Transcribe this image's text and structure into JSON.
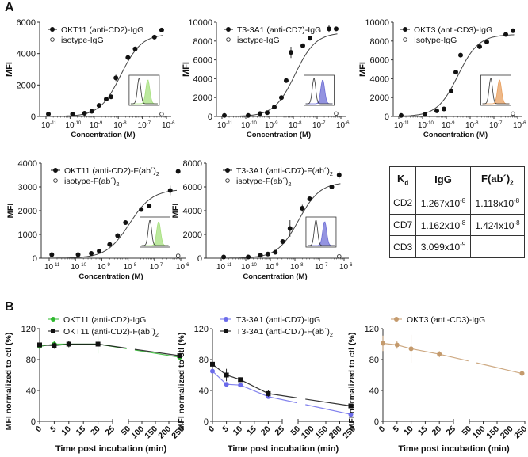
{
  "panel_labels": {
    "a": "A",
    "b": "B"
  },
  "kd_table": {
    "header": {
      "kd": "K",
      "kd_sub": "d",
      "igg": "IgG",
      "fab": "F(ab´)",
      "fab_sub": "2"
    },
    "rows": [
      {
        "target": "CD2",
        "igg": {
          "mant": "1.267x10",
          "exp": "-8"
        },
        "fab": {
          "mant": "1.118x10",
          "exp": "-8"
        }
      },
      {
        "target": "CD7",
        "igg": {
          "mant": "1.162x10",
          "exp": "-8"
        },
        "fab": {
          "mant": "1.424x10",
          "exp": "-8"
        }
      },
      {
        "target": "CD3",
        "igg": {
          "mant": "3.099x10",
          "exp": "-9"
        },
        "fab": {
          "mant": "",
          "exp": ""
        }
      }
    ]
  },
  "chart_data": [
    {
      "type": "scatter",
      "panel": "A",
      "xscale": "log",
      "xlim_log10": [
        -11,
        -6
      ],
      "xticks_exp": [
        "-11",
        "-10",
        "-9",
        "-8",
        "-7",
        "-6"
      ],
      "ylim": [
        0,
        6000
      ],
      "yticks": [
        0,
        2000,
        4000,
        6000
      ],
      "ylabel": "MFI",
      "xlabel": "Concentration (M)",
      "legend": "top-left",
      "inset_color": "#a6e07e",
      "series": [
        {
          "name": "OKT11 (anti-CD2)-IgG",
          "marker": "filled",
          "fit": {
            "bottom": 0,
            "top": 5250,
            "log_ec50": -7.9,
            "hill": 1
          },
          "log10_x": [
            -10.9,
            -9.9,
            -9.4,
            -9.1,
            -8.8,
            -8.5,
            -8.3,
            -8.1,
            -7.6,
            -7.3,
            -6.5,
            -6.2
          ],
          "y": [
            150,
            150,
            200,
            330,
            700,
            1100,
            1250,
            2450,
            3750,
            4300,
            5050,
            5500
          ],
          "err": [
            0,
            0,
            0,
            0,
            0,
            0,
            0,
            200,
            0,
            0,
            120,
            0
          ]
        },
        {
          "name": "isotype-IgG",
          "marker": "open",
          "log10_x": [
            -6.2
          ],
          "y": [
            150
          ]
        }
      ]
    },
    {
      "type": "scatter",
      "panel": "A",
      "xscale": "log",
      "xlim_log10": [
        -11,
        -6
      ],
      "xticks_exp": [
        "-11",
        "-10",
        "-9",
        "-8",
        "-7",
        "-6"
      ],
      "ylim": [
        0,
        10000
      ],
      "yticks": [
        0,
        2000,
        4000,
        6000,
        8000,
        10000
      ],
      "ylabel": "MFI",
      "xlabel": "Concentration (M)",
      "legend": "top-left",
      "inset_color": "#6f6fd6",
      "series": [
        {
          "name": "T3-3A1 (anti-CD7)-IgG",
          "marker": "filled",
          "fit": {
            "bottom": 0,
            "top": 8900,
            "log_ec50": -7.93,
            "hill": 1
          },
          "log10_x": [
            -10.9,
            -9.9,
            -9.4,
            -9.1,
            -8.8,
            -8.5,
            -8.3,
            -8.1,
            -7.6,
            -7.3,
            -6.5,
            -6.2
          ],
          "y": [
            100,
            100,
            300,
            400,
            1000,
            2000,
            3800,
            6800,
            7500,
            8300,
            9300,
            9300
          ],
          "err": [
            0,
            0,
            0,
            0,
            0,
            0,
            200,
            600,
            0,
            0,
            400,
            0
          ]
        },
        {
          "name": "isotype-IgG",
          "marker": "open",
          "log10_x": [
            -6.2
          ],
          "y": [
            300
          ]
        }
      ]
    },
    {
      "type": "scatter",
      "panel": "A",
      "xscale": "log",
      "xlim_log10": [
        -11,
        -6
      ],
      "xticks_exp": [
        "-11",
        "-10",
        "-9",
        "-8",
        "-7",
        "-6"
      ],
      "ylim": [
        0,
        10000
      ],
      "yticks": [
        0,
        2000,
        4000,
        6000,
        8000,
        10000
      ],
      "ylabel": "MFI",
      "xlabel": "Concentration (M)",
      "legend": "top-left",
      "inset_color": "#e8a060",
      "series": [
        {
          "name": "OKT3 (anti-CD3)-IgG",
          "marker": "filled",
          "fit": {
            "bottom": 0,
            "top": 8700,
            "log_ec50": -8.51,
            "hill": 1
          },
          "log10_x": [
            -10.9,
            -9.9,
            -9.4,
            -9.1,
            -8.8,
            -8.6,
            -8.4,
            -7.6,
            -7.3,
            -6.5,
            -6.2
          ],
          "y": [
            100,
            200,
            600,
            800,
            2700,
            4700,
            6500,
            7400,
            7900,
            8700,
            9100
          ]
        },
        {
          "name": "Isotype-IgG",
          "marker": "open",
          "log10_x": [
            -6.2
          ],
          "y": [
            300
          ]
        }
      ]
    },
    {
      "type": "scatter",
      "panel": "A",
      "xscale": "log",
      "xlim_log10": [
        -11,
        -6
      ],
      "xticks_exp": [
        "-11",
        "-10",
        "-9",
        "-8",
        "-7",
        "-6"
      ],
      "ylim": [
        0,
        4000
      ],
      "yticks": [
        0,
        1000,
        2000,
        3000,
        4000
      ],
      "ylabel": "MFI",
      "xlabel": "Concentration (M)",
      "legend": "top-left",
      "inset_color": "#a6e07e",
      "series": [
        {
          "name": "OKT11 (anti-CD2)-F(ab´)",
          "name_sub": "2",
          "marker": "filled",
          "fit": {
            "bottom": 0,
            "top": 2900,
            "log_ec50": -7.95,
            "hill": 1
          },
          "log10_x": [
            -10.9,
            -9.9,
            -9.4,
            -9.1,
            -8.7,
            -8.4,
            -8.1,
            -7.5,
            -7.2,
            -6.4,
            -6.1
          ],
          "y": [
            150,
            150,
            200,
            300,
            580,
            950,
            1500,
            2050,
            2200,
            2850,
            3650
          ],
          "err": [
            0,
            0,
            0,
            0,
            0,
            0,
            0,
            0,
            0,
            200,
            0
          ]
        },
        {
          "name": "isotype-F(ab´)",
          "name_sub": "2",
          "marker": "open",
          "log10_x": [
            -6.1
          ],
          "y": [
            100
          ]
        }
      ]
    },
    {
      "type": "scatter",
      "panel": "A",
      "xscale": "log",
      "xlim_log10": [
        -11,
        -6
      ],
      "xticks_exp": [
        "-11",
        "-10",
        "-9",
        "-8",
        "-7",
        "-6"
      ],
      "ylim": [
        0,
        8000
      ],
      "yticks": [
        0,
        2000,
        4000,
        6000,
        8000
      ],
      "ylabel": "MFI",
      "xlabel": "Concentration (M)",
      "legend": "top-left",
      "inset_color": "#6f6fd6",
      "series": [
        {
          "name": "T3-3A1 (anti-CD7)-F(ab´)",
          "name_sub": "2",
          "marker": "filled",
          "fit": {
            "bottom": 0,
            "top": 6400,
            "log_ec50": -7.85,
            "hill": 1
          },
          "log10_x": [
            -10.9,
            -9.9,
            -9.4,
            -9.1,
            -8.8,
            -8.5,
            -8.2,
            -7.7,
            -7.4,
            -6.5,
            -6.2
          ],
          "y": [
            100,
            100,
            250,
            350,
            500,
            1400,
            2500,
            4200,
            5000,
            6000,
            7000
          ],
          "err": [
            0,
            0,
            0,
            0,
            0,
            0,
            700,
            300,
            0,
            0,
            300
          ]
        },
        {
          "name": "isotype-F(ab´)",
          "name_sub": "2",
          "marker": "open",
          "log10_x": [
            -6.2
          ],
          "y": [
            150
          ]
        }
      ]
    },
    {
      "type": "line",
      "panel": "B",
      "x": [
        0,
        5,
        10,
        20,
        240
      ],
      "xticks": [
        0,
        5,
        10,
        15,
        20,
        25,
        50,
        100,
        150,
        200,
        250
      ],
      "xbreak": [
        25,
        50
      ],
      "ylim": [
        0,
        120
      ],
      "yticks": [
        0,
        40,
        80,
        120
      ],
      "ylabel": "MFI normalized to ctl (%)",
      "xlabel": "Time post incubation (min)",
      "legend": "top",
      "series": [
        {
          "name": "OKT11 (anti-CD2)-IgG",
          "color": "#2eb82e",
          "marker": "circle",
          "y": [
            97,
            100,
            100,
            100,
            83
          ],
          "err": [
            3,
            4,
            4,
            12,
            3
          ]
        },
        {
          "name": "OKT11 (anti-CD2)-F(ab´)",
          "name_sub": "2",
          "color": "#111111",
          "marker": "square",
          "y": [
            99,
            98,
            100,
            100,
            85
          ],
          "err": [
            3,
            4,
            4,
            4,
            3
          ]
        }
      ]
    },
    {
      "type": "line",
      "panel": "B",
      "x": [
        0,
        5,
        10,
        20,
        240
      ],
      "xticks": [
        0,
        5,
        10,
        15,
        20,
        25,
        50,
        100,
        150,
        200,
        250
      ],
      "xbreak": [
        25,
        50
      ],
      "ylim": [
        0,
        120
      ],
      "yticks": [
        0,
        40,
        80,
        120
      ],
      "ylabel": "MFI normalized to ctl (%)",
      "xlabel": "Time post incubation (min)",
      "legend": "top",
      "series": [
        {
          "name": "T3-3A1 (anti-CD7)-IgG",
          "color": "#6b6bea",
          "marker": "circle",
          "y": [
            65,
            48,
            47,
            32,
            9
          ],
          "err": [
            0,
            0,
            0,
            0,
            0
          ]
        },
        {
          "name": "T3-3A1 (anti-CD7)-F(ab´)",
          "name_sub": "2",
          "color": "#111111",
          "marker": "square",
          "y": [
            74,
            60,
            54,
            36,
            20
          ],
          "err": [
            2,
            8,
            3,
            4,
            2
          ]
        }
      ]
    },
    {
      "type": "line",
      "panel": "B",
      "x": [
        0,
        5,
        10,
        20,
        240
      ],
      "xticks": [
        0,
        5,
        10,
        15,
        20,
        25,
        50,
        100,
        150,
        200,
        250
      ],
      "xbreak": [
        25,
        50
      ],
      "ylim": [
        0,
        120
      ],
      "yticks": [
        0,
        40,
        80,
        120
      ],
      "ylabel": "MFI normalized to ctl (%)",
      "xlabel": "Time post incubation (min)",
      "legend": "top",
      "series": [
        {
          "name": "OKT3 (anti-CD3)-IgG",
          "color": "#c49a6c",
          "marker": "circle",
          "y": [
            101,
            99,
            94,
            87,
            62
          ],
          "err": [
            10,
            5,
            18,
            4,
            11
          ]
        }
      ]
    }
  ]
}
